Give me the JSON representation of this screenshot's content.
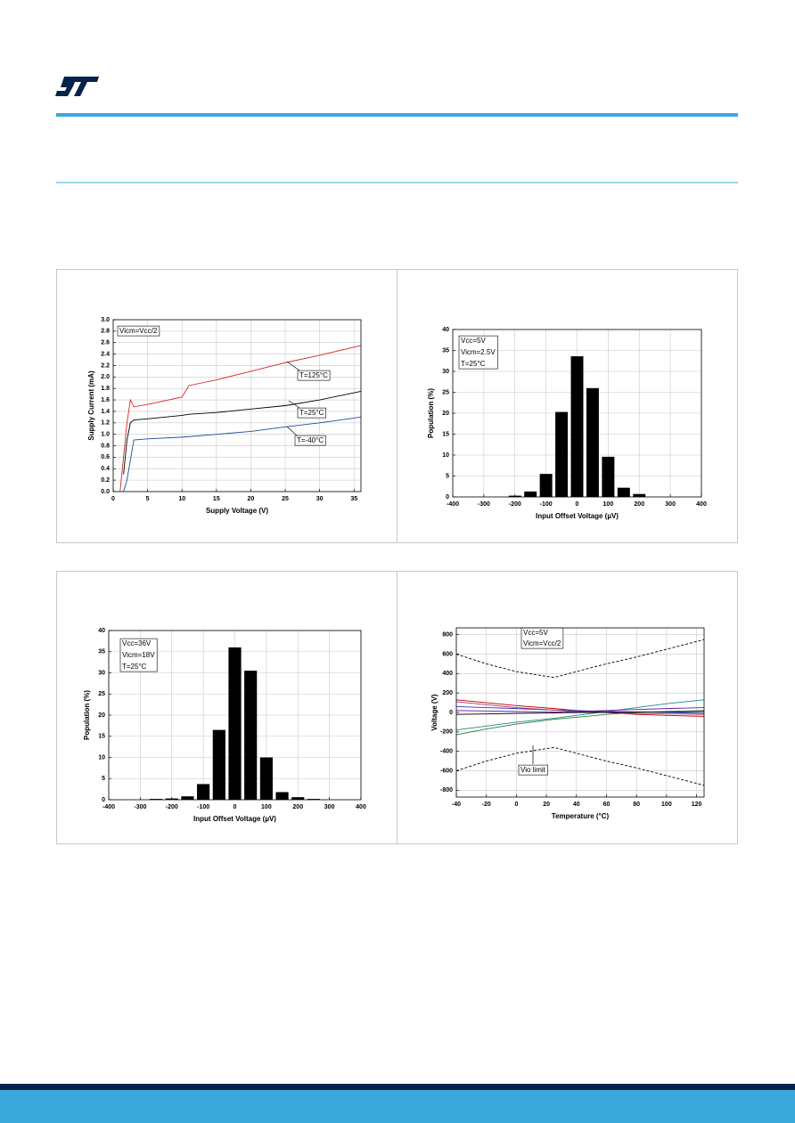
{
  "chart_data": [
    {
      "type": "line",
      "x_label": "Supply Voltage (V)",
      "y_label": "Supply Current (mA)",
      "xlim": [
        0,
        36
      ],
      "xticks": [
        0,
        5,
        10,
        15,
        20,
        25,
        30,
        35
      ],
      "ylim": [
        0,
        3
      ],
      "yticks": [
        {
          "value": 0,
          "label": "0.0"
        },
        0.2,
        0.4,
        0.6,
        0.8,
        {
          "value": 1,
          "label": "1.0"
        },
        1.2,
        1.4,
        1.6,
        1.8,
        {
          "value": 2,
          "label": "2.0"
        },
        2.2,
        2.4,
        2.6,
        2.8,
        {
          "value": 3,
          "label": "3.0"
        }
      ],
      "grid": true,
      "annotations": [
        "Vicm=Vcc/2",
        "T=125°C",
        "T=25°C",
        "T=-40°C"
      ],
      "x": [
        1,
        1.5,
        2,
        2.5,
        3,
        5,
        10,
        11,
        15,
        20,
        25,
        30,
        36
      ],
      "series": [
        {
          "color": "#d62728",
          "values": [
            0,
            0.6,
            1.2,
            1.6,
            1.48,
            1.52,
            1.65,
            1.85,
            1.95,
            2.1,
            2.25,
            2.38,
            2.55
          ]
        },
        {
          "color": "#000000",
          "values": [
            null,
            0.3,
            0.9,
            1.2,
            1.25,
            1.27,
            1.33,
            1.35,
            1.38,
            1.44,
            1.5,
            1.6,
            1.75
          ]
        },
        {
          "color": "#1f4e9c",
          "values": [
            null,
            0,
            0.2,
            0.55,
            0.9,
            0.92,
            0.95,
            0.96,
            1.0,
            1.05,
            1.13,
            1.2,
            1.3
          ]
        }
      ]
    },
    {
      "type": "bar",
      "x_label": "Input Offset Voltage (µV)",
      "y_label": "Population (%)",
      "xlim": [
        -400,
        400
      ],
      "xticks": [
        -400,
        -300,
        -200,
        -100,
        0,
        100,
        200,
        300,
        400
      ],
      "ylim": [
        0,
        40
      ],
      "yticks": [
        0,
        5,
        10,
        15,
        20,
        25,
        30,
        35,
        40
      ],
      "grid": true,
      "annotations": [
        "Vcc=5V",
        "Vicm=2.5V",
        "T=25°C"
      ],
      "x": [
        -200,
        -150,
        -100,
        -50,
        0,
        50,
        100,
        150,
        200
      ],
      "values": [
        0.3,
        1.3,
        5.5,
        20.3,
        33.6,
        26,
        9.6,
        2.2,
        0.7
      ],
      "color": "#000000"
    },
    {
      "type": "bar",
      "x_label": "Input Offset Voltage (µV)",
      "y_label": "Population (%)",
      "xlim": [
        -400,
        400
      ],
      "xticks": [
        -400,
        -300,
        -200,
        -100,
        0,
        100,
        200,
        300,
        400
      ],
      "ylim": [
        0,
        40
      ],
      "yticks": [
        0,
        5,
        10,
        15,
        20,
        25,
        30,
        35,
        40
      ],
      "grid": true,
      "annotations": [
        "Vcc=36V",
        "Vicm=18V",
        "T=25°C"
      ],
      "x": [
        -250,
        -200,
        -150,
        -100,
        -50,
        0,
        50,
        100,
        150,
        200,
        250
      ],
      "values": [
        0.2,
        0.3,
        0.8,
        3.7,
        16.5,
        36,
        30.5,
        10,
        1.8,
        0.6,
        0.2
      ],
      "color": "#000000"
    },
    {
      "type": "line",
      "x_label": "Temperature (°C)",
      "y_label": "Voltage (V)",
      "xlim": [
        -40,
        125
      ],
      "xticks": [
        -40,
        -20,
        0,
        20,
        40,
        60,
        80,
        100,
        120
      ],
      "ylim": [
        -870,
        870
      ],
      "yticks": [
        -800,
        -600,
        -400,
        -200,
        0,
        200,
        400,
        600,
        800
      ],
      "grid": true,
      "annotations": [
        "Vcc=5V",
        "Vicm=Vcc/2",
        "Vio limit"
      ],
      "x": [
        -40,
        -20,
        0,
        25,
        40,
        60,
        80,
        100,
        125
      ],
      "series": [
        {
          "color": "#000000",
          "dash": true,
          "values": [
            600,
            500,
            420,
            360,
            420,
            500,
            570,
            650,
            750
          ]
        },
        {
          "color": "#000000",
          "dash": true,
          "values": [
            -600,
            -500,
            -420,
            -360,
            -420,
            -500,
            -570,
            -650,
            -750
          ]
        },
        {
          "color": "#c00000",
          "values": [
            130,
            100,
            70,
            40,
            20,
            0,
            -20,
            -30,
            -40
          ]
        },
        {
          "color": "#1a8a8a",
          "values": [
            -180,
            -140,
            -100,
            -60,
            -30,
            10,
            50,
            90,
            130
          ]
        },
        {
          "color": "#2e7d32",
          "values": [
            -230,
            -170,
            -120,
            -70,
            -50,
            -20,
            0,
            10,
            20
          ]
        },
        {
          "color": "#1f3fbf",
          "values": [
            60,
            50,
            40,
            25,
            20,
            10,
            5,
            0,
            -10
          ]
        },
        {
          "color": "#b0306a",
          "values": [
            110,
            80,
            50,
            25,
            10,
            0,
            -10,
            -15,
            -20
          ]
        },
        {
          "color": "#6a1b9a",
          "values": [
            20,
            15,
            10,
            5,
            10,
            20,
            30,
            40,
            50
          ]
        },
        {
          "color": "#000000",
          "values": [
            -20,
            -15,
            -10,
            -5,
            0,
            0,
            5,
            5,
            10
          ]
        }
      ]
    }
  ]
}
